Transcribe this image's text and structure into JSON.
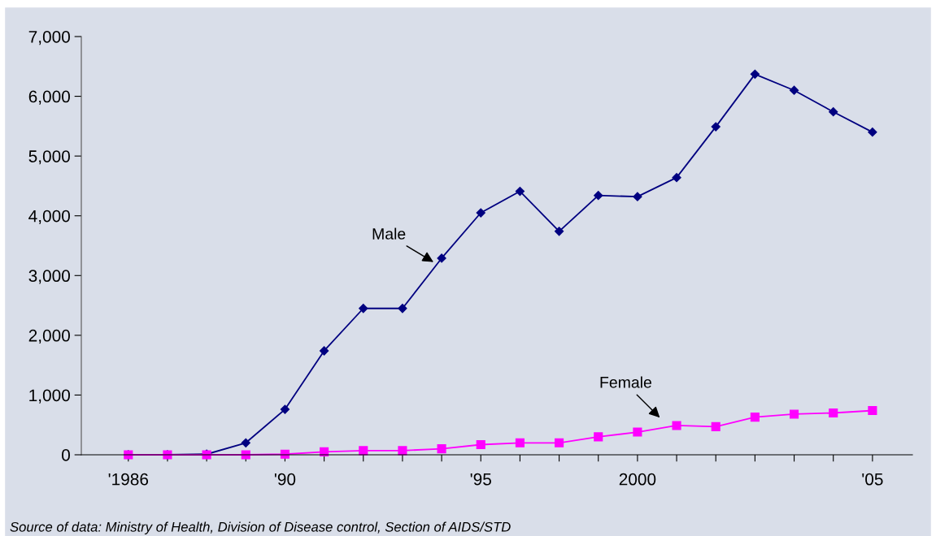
{
  "chart_data": {
    "type": "line",
    "categories": [
      "'1986",
      null,
      null,
      null,
      "'90",
      null,
      null,
      null,
      null,
      "'95",
      null,
      null,
      null,
      "2000",
      null,
      null,
      null,
      null,
      null,
      "'05"
    ],
    "series": [
      {
        "name": "Male",
        "color": "#000080",
        "marker": "diamond",
        "values": [
          0,
          0,
          10,
          200,
          760,
          1740,
          2450,
          2450,
          3290,
          4050,
          4410,
          3740,
          4340,
          4320,
          4640,
          5490,
          6370,
          6100,
          5740,
          5400
        ]
      },
      {
        "name": "Female",
        "color": "#ff00ff",
        "marker": "square",
        "values": [
          0,
          0,
          0,
          0,
          10,
          50,
          70,
          70,
          100,
          170,
          200,
          200,
          300,
          380,
          490,
          470,
          630,
          680,
          700,
          740
        ]
      }
    ],
    "ylim": [
      0,
      7000
    ],
    "yticks": [
      {
        "value": 0,
        "label": "0"
      },
      {
        "value": 1000,
        "label": "1,000"
      },
      {
        "value": 2000,
        "label": "2,000"
      },
      {
        "value": 3000,
        "label": "3,000"
      },
      {
        "value": 4000,
        "label": "4,000"
      },
      {
        "value": 5000,
        "label": "5,000"
      },
      {
        "value": 6000,
        "label": "6,000"
      },
      {
        "value": 7000,
        "label": "7,000"
      }
    ],
    "grid": false,
    "legend": false,
    "line_style": "solid",
    "annotations": [
      "Source of data: Ministry of Health, Division of Disease control, Section of AIDS/STD"
    ]
  }
}
